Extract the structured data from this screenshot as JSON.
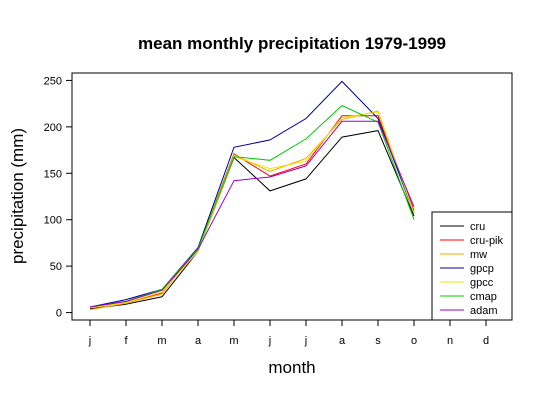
{
  "chart_data": {
    "type": "line",
    "title": "mean monthly precipitation 1979-1999",
    "xlabel": "month",
    "ylabel": "precipitation (mm)",
    "categories": [
      "j",
      "f",
      "m",
      "a",
      "m",
      "j",
      "j",
      "a",
      "s",
      "o",
      "n",
      "d"
    ],
    "ylim": [
      -8,
      258
    ],
    "yticks": [
      0,
      50,
      100,
      150,
      200,
      250
    ],
    "grid": false,
    "legend_position": "bottom-right",
    "series": [
      {
        "name": "cru",
        "color": "#000000",
        "values": [
          4,
          9,
          17,
          66,
          167,
          131,
          144,
          189,
          196,
          104,
          null,
          null
        ]
      },
      {
        "name": "cru-pik",
        "color": "#ff0000",
        "values": [
          5,
          11,
          21,
          69,
          171,
          147,
          160,
          212,
          212,
          110,
          null,
          null
        ]
      },
      {
        "name": "mw",
        "color": "#ffaa00",
        "values": [
          3,
          10,
          20,
          69,
          170,
          152,
          166,
          208,
          217,
          107,
          null,
          null
        ]
      },
      {
        "name": "gpcp",
        "color": "#000099",
        "values": [
          6,
          14,
          25,
          70,
          178,
          186,
          209,
          249,
          209,
          107,
          null,
          null
        ]
      },
      {
        "name": "gpcc",
        "color": "#e8e800",
        "values": [
          5,
          11,
          22,
          66,
          168,
          155,
          163,
          210,
          216,
          107,
          null,
          null
        ]
      },
      {
        "name": "cmap",
        "color": "#00cc00",
        "values": [
          6,
          12,
          25,
          69,
          168,
          164,
          187,
          223,
          205,
          100,
          null,
          null
        ]
      },
      {
        "name": "adam",
        "color": "#9900cc",
        "values": [
          6,
          12,
          24,
          68,
          142,
          146,
          158,
          206,
          206,
          114,
          null,
          null
        ]
      }
    ]
  }
}
